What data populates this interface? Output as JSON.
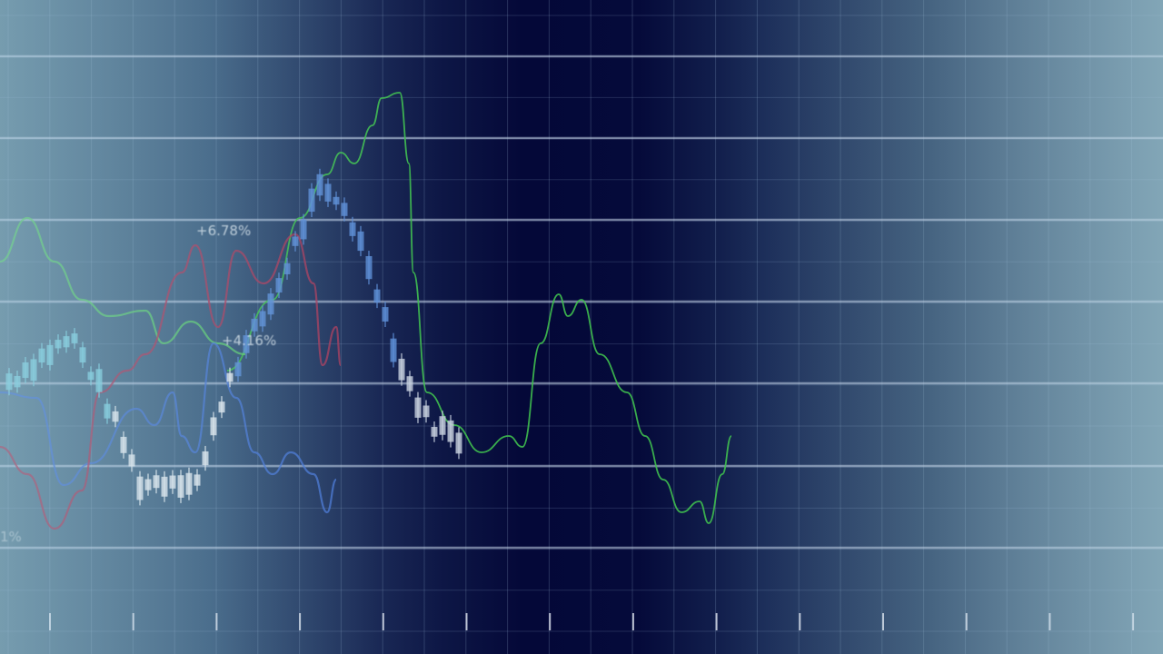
{
  "chart_data": {
    "type": "line",
    "title": "",
    "xlabel": "",
    "ylabel": "",
    "grid": true,
    "annotations": [
      "+6.78%",
      "+4.16%",
      "1%"
    ],
    "series": [
      {
        "color": "#3fbf4f",
        "points": [
          [
            25,
            42
          ],
          [
            30,
            55
          ],
          [
            33,
            70
          ],
          [
            36,
            78
          ],
          [
            37.5,
            82
          ],
          [
            39,
            80
          ],
          [
            41,
            87
          ],
          [
            42,
            92
          ],
          [
            44,
            93
          ],
          [
            45,
            80
          ],
          [
            45.5,
            60
          ],
          [
            47,
            38
          ],
          [
            50,
            32
          ],
          [
            53,
            27
          ],
          [
            56,
            30
          ],
          [
            57.5,
            28
          ],
          [
            59.5,
            47
          ],
          [
            61.5,
            56
          ],
          [
            62.5,
            52
          ],
          [
            64,
            55
          ],
          [
            66,
            45
          ],
          [
            69,
            38
          ],
          [
            71,
            30
          ],
          [
            73,
            22
          ],
          [
            75,
            16
          ],
          [
            77,
            18
          ],
          [
            78,
            14
          ],
          [
            79.5,
            23
          ],
          [
            80.5,
            30
          ]
        ]
      },
      {
        "color": "#5fcf6f",
        "points": [
          [
            0,
            62
          ],
          [
            3,
            70
          ],
          [
            6,
            62
          ],
          [
            9,
            55
          ],
          [
            12,
            52
          ],
          [
            16,
            53
          ],
          [
            18,
            47
          ],
          [
            21,
            51
          ],
          [
            24,
            47
          ],
          [
            27,
            45
          ]
        ]
      },
      {
        "color": "#4a78d8",
        "points": [
          [
            0,
            38
          ],
          [
            4,
            37
          ],
          [
            7,
            21
          ],
          [
            10,
            25
          ],
          [
            15,
            35
          ],
          [
            17,
            32
          ],
          [
            19,
            38
          ],
          [
            20,
            30
          ],
          [
            21.5,
            27
          ],
          [
            23.5,
            47
          ],
          [
            26,
            37
          ],
          [
            28,
            27
          ],
          [
            30,
            23
          ],
          [
            32,
            27
          ],
          [
            34.5,
            23
          ],
          [
            36,
            16
          ],
          [
            37,
            22
          ]
        ]
      },
      {
        "color": "#b03a5a",
        "points": [
          [
            0,
            28
          ],
          [
            3,
            23
          ],
          [
            6,
            13
          ],
          [
            9,
            20
          ],
          [
            11,
            38
          ],
          [
            14,
            42
          ],
          [
            16,
            45
          ],
          [
            20,
            60
          ],
          [
            21.5,
            65
          ],
          [
            24,
            50
          ],
          [
            26,
            64
          ],
          [
            29,
            58
          ],
          [
            32.5,
            67
          ],
          [
            34.5,
            58
          ],
          [
            35.5,
            43
          ],
          [
            37,
            50
          ],
          [
            37.5,
            43
          ]
        ]
      }
    ],
    "candlestick_trend": [
      [
        1,
        40
      ],
      [
        5,
        45
      ],
      [
        8,
        48
      ],
      [
        10,
        42
      ],
      [
        12,
        35
      ],
      [
        15.5,
        21
      ],
      [
        19,
        22
      ],
      [
        22,
        22
      ],
      [
        25,
        40
      ],
      [
        30,
        55
      ],
      [
        35,
        75
      ],
      [
        38,
        72
      ],
      [
        41,
        60
      ],
      [
        44,
        43
      ],
      [
        47,
        33
      ],
      [
        51,
        29
      ]
    ]
  }
}
